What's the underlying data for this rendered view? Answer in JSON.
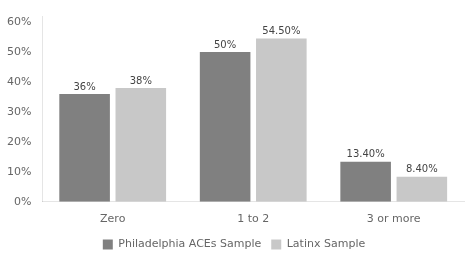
{
  "chart_data": {
    "type": "bar",
    "categories": [
      "Zero",
      "1 to 2",
      "3 or more"
    ],
    "series": [
      {
        "name": "Philadelphia ACEs Sample",
        "color": "#808080",
        "values": [
          36.0,
          50.0,
          13.4
        ],
        "value_labels": [
          "36%",
          "50%",
          "13.40%"
        ]
      },
      {
        "name": "Latinx Sample",
        "color": "#c8c8c8",
        "values": [
          38.0,
          54.5,
          8.4
        ],
        "value_labels": [
          "38%",
          "54.50%",
          "8.40%"
        ]
      }
    ],
    "ylim": [
      0,
      62
    ],
    "yticks": [
      {
        "value": 0,
        "label": "0%"
      },
      {
        "value": 10,
        "label": "10%"
      },
      {
        "value": 20,
        "label": "20%"
      },
      {
        "value": 30,
        "label": "30%"
      },
      {
        "value": 40,
        "label": "40%"
      },
      {
        "value": 50,
        "label": "50%"
      },
      {
        "value": 60,
        "label": "60%"
      }
    ],
    "grid": false,
    "legend": "bottom",
    "data_labels": true
  }
}
